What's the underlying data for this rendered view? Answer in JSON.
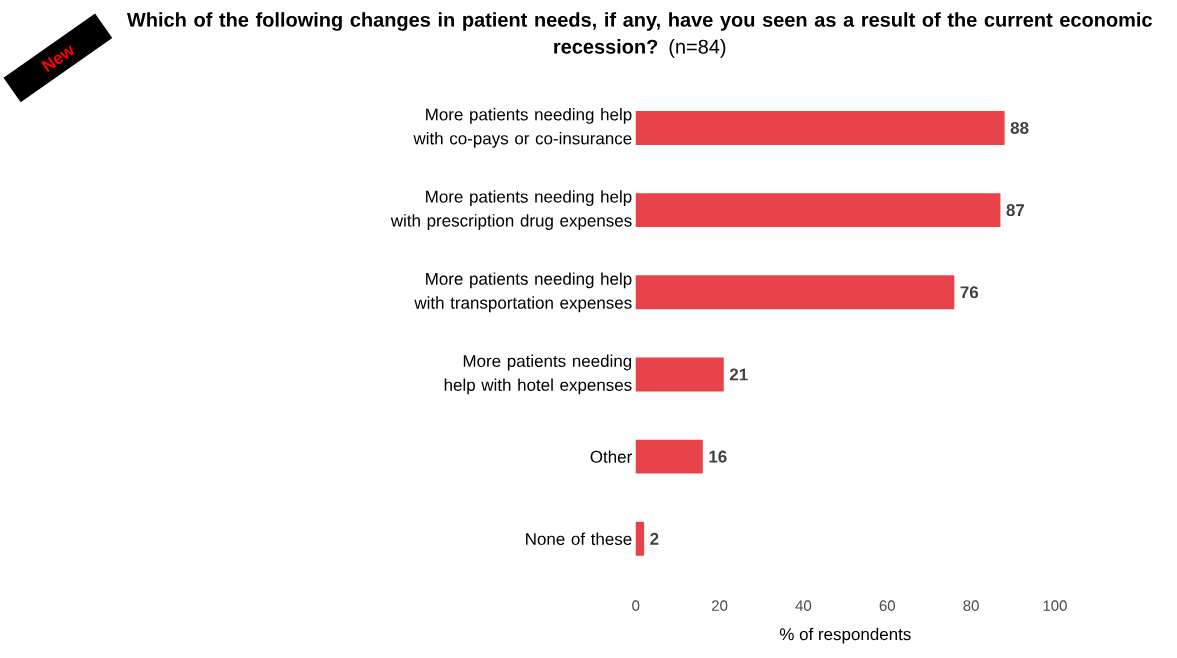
{
  "chart_data": {
    "type": "bar",
    "orientation": "horizontal",
    "title": "**Which of the following changes in patient needs, if any, have you seen as a result of the current economic recession?** (n=84)",
    "categories": [
      "More patients needing help with co-pays or co-insurance",
      "More patients needing help with prescription drug expenses",
      "More patients needing help with transportation expenses",
      "More patients needing help with hotel expenses",
      "Other",
      "None of these"
    ],
    "values": [
      88,
      87,
      76,
      21,
      16,
      2
    ],
    "color": "#e8434b",
    "xlim": [
      0,
      100
    ],
    "xticks": [
      0,
      20,
      40,
      60,
      80,
      100
    ],
    "xlabel": "% of respondents",
    "data_labels": true,
    "annotations": [
      "New"
    ]
  }
}
